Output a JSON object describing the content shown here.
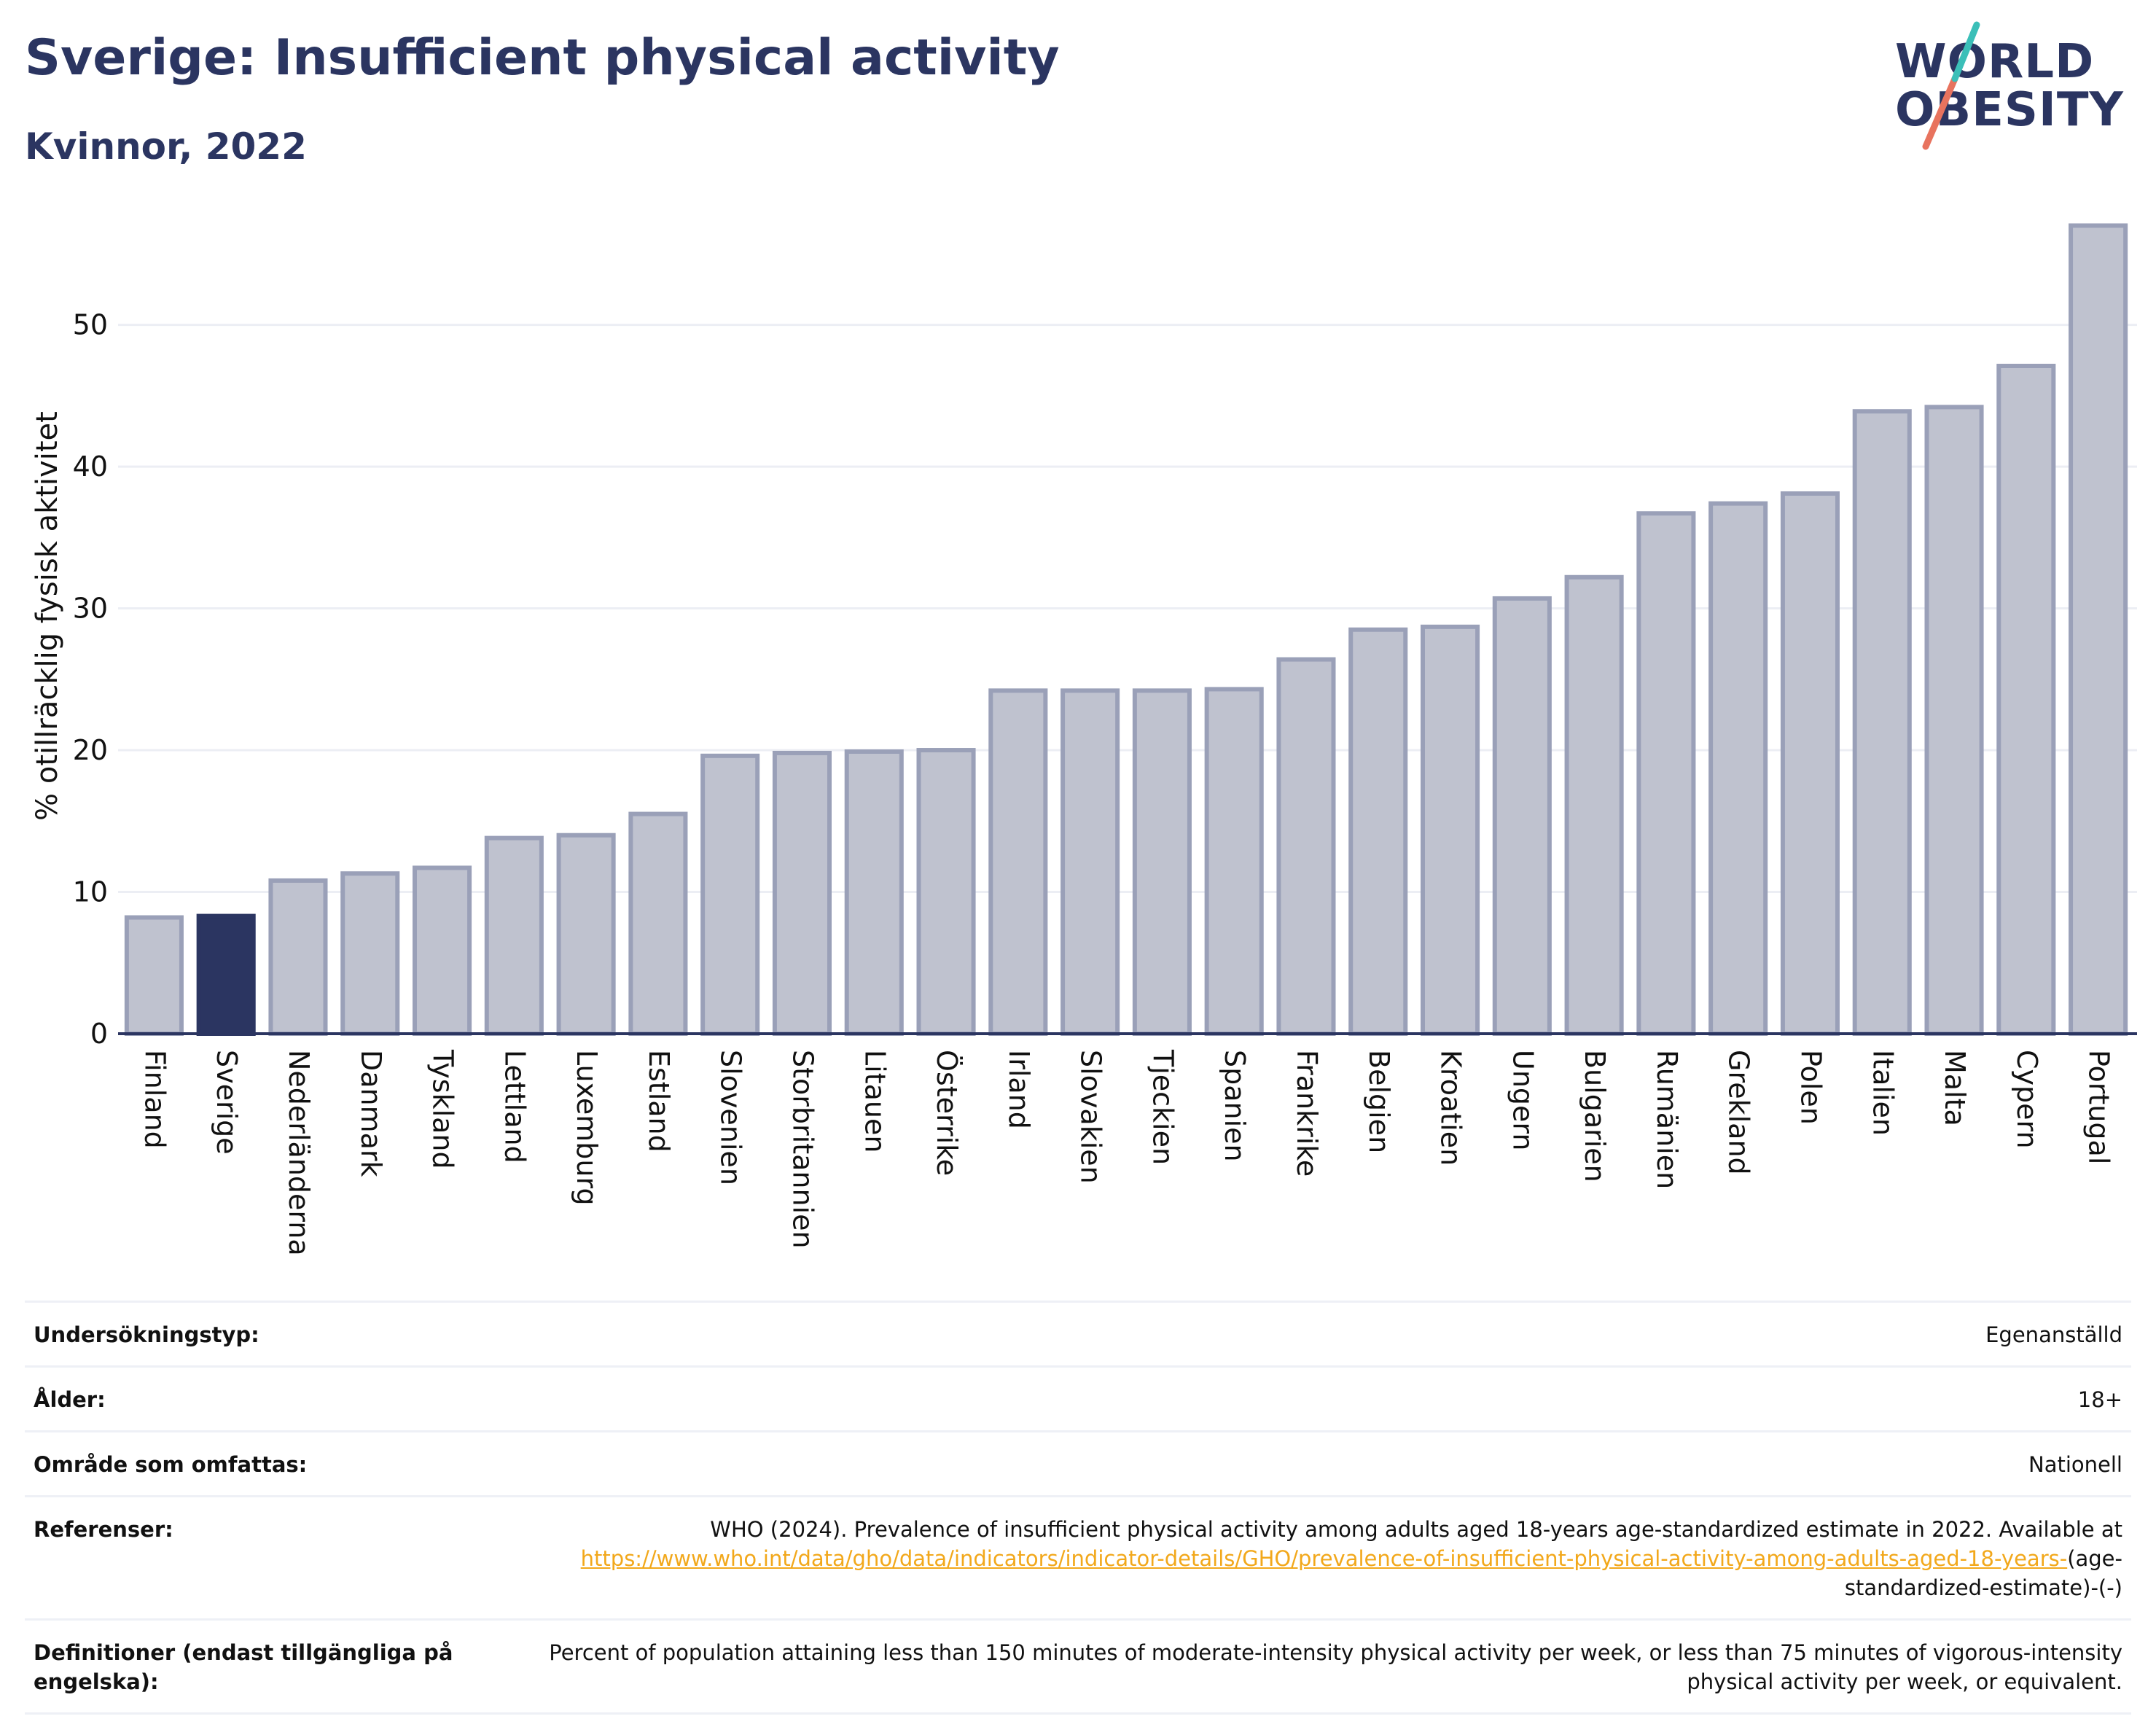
{
  "header": {
    "title": "Sverige: Insufficient physical activity",
    "subtitle": "Kvinnor, 2022"
  },
  "logo": {
    "line1": "WORLD",
    "line2": "OBESITY",
    "text_color": "#2b3561",
    "slash_colors": [
      "#e8735e",
      "#3bbfb8"
    ]
  },
  "chart_data": {
    "type": "bar",
    "title": "Sverige: Insufficient physical activity",
    "subtitle": "Kvinnor, 2022",
    "xlabel": "",
    "ylabel": "% otillräcklig fysisk aktivitet",
    "ylim": [
      0,
      58
    ],
    "yticks": [
      0,
      10,
      20,
      30,
      40,
      50
    ],
    "grid": true,
    "highlight": "Sverige",
    "colors": {
      "bar": "#bfc2cf",
      "bar_edge": "#9aa0b8",
      "highlight": "#2b3561",
      "grid": "#eceef4",
      "axis": "#2b3561"
    },
    "categories": [
      "Finland",
      "Sverige",
      "Nederländerna",
      "Danmark",
      "Tyskland",
      "Lettland",
      "Luxemburg",
      "Estland",
      "Slovenien",
      "Storbritannien",
      "Litauen",
      "Österrike",
      "Irland",
      "Slovakien",
      "Tjeckien",
      "Spanien",
      "Frankrike",
      "Belgien",
      "Kroatien",
      "Ungern",
      "Bulgarien",
      "Rumänien",
      "Grekland",
      "Polen",
      "Italien",
      "Malta",
      "Cypern",
      "Portugal"
    ],
    "values": [
      8.2,
      8.3,
      10.8,
      11.3,
      11.7,
      13.8,
      14.0,
      15.5,
      19.6,
      19.8,
      19.9,
      20.0,
      24.2,
      24.2,
      24.2,
      24.3,
      26.4,
      28.5,
      28.7,
      30.7,
      32.2,
      36.7,
      37.4,
      38.1,
      43.9,
      44.2,
      47.1,
      57.0
    ]
  },
  "info": {
    "survey_type": {
      "label": "Undersökningstyp:",
      "value": "Egenanställd"
    },
    "age": {
      "label": "Ålder:",
      "value": "18+"
    },
    "coverage": {
      "label": "Område som omfattas:",
      "value": "Nationell"
    },
    "references": {
      "label": "Referenser:",
      "text": "WHO (2024). Prevalence of insufficient physical activity among adults aged 18-years age-standardized estimate in 2022. Available at",
      "link": "https://www.who.int/data/gho/data/indicators/indicator-details/GHO/prevalence-of-insufficient-physical-activity-among-adults-aged-18-years-",
      "suffix": "(age-standardized-estimate)-(-)"
    },
    "definitions": {
      "label": "Definitioner (endast tillgängliga på engelska):",
      "value": "Percent of population attaining less than 150 minutes of moderate-intensity physical activity per week, or less than 75 minutes of vigorous-intensity physical activity per week, or equivalent."
    }
  }
}
